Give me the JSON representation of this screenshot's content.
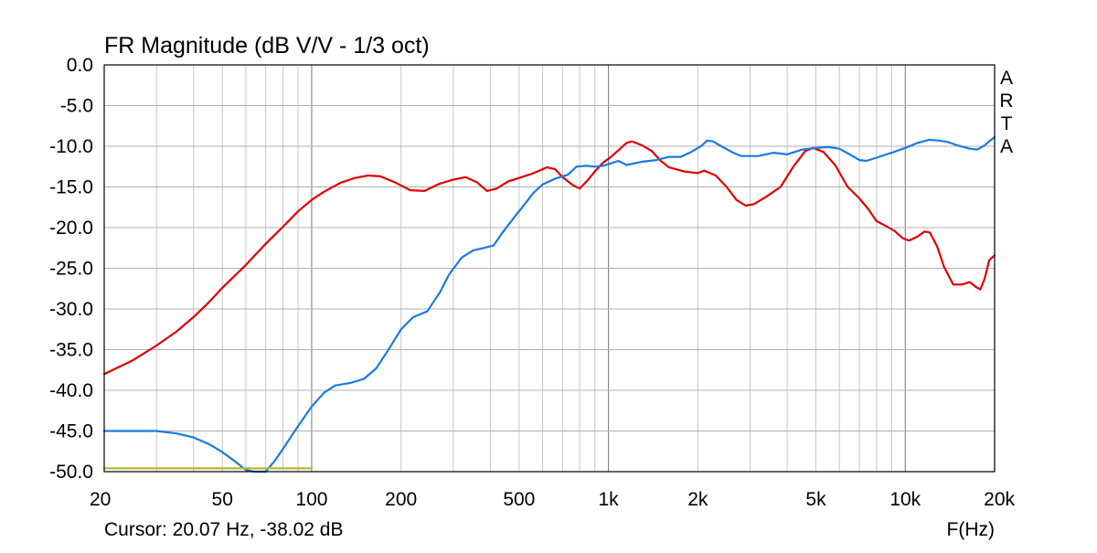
{
  "chart_data": {
    "type": "line",
    "title": "FR Magnitude (dB V/V - 1/3 oct)",
    "xlabel": "F(Hz)",
    "ylabel": "",
    "x_scale": "log",
    "xlim": [
      20,
      20000
    ],
    "ylim": [
      -50,
      0
    ],
    "grid": true,
    "x_ticks": [
      {
        "value": 20,
        "label": "20"
      },
      {
        "value": 50,
        "label": "50"
      },
      {
        "value": 100,
        "label": "100"
      },
      {
        "value": 200,
        "label": "200"
      },
      {
        "value": 500,
        "label": "500"
      },
      {
        "value": 1000,
        "label": "1k"
      },
      {
        "value": 2000,
        "label": "2k"
      },
      {
        "value": 5000,
        "label": "5k"
      },
      {
        "value": 10000,
        "label": "10k"
      },
      {
        "value": 20000,
        "label": "20k"
      }
    ],
    "y_ticks": [
      {
        "value": 0,
        "label": "0.0"
      },
      {
        "value": -5,
        "label": "-5.0"
      },
      {
        "value": -10,
        "label": "-10.0"
      },
      {
        "value": -15,
        "label": "-15.0"
      },
      {
        "value": -20,
        "label": "-20.0"
      },
      {
        "value": -25,
        "label": "-25.0"
      },
      {
        "value": -30,
        "label": "-30.0"
      },
      {
        "value": -35,
        "label": "-35.0"
      },
      {
        "value": -40,
        "label": "-40.0"
      },
      {
        "value": -45,
        "label": "-45.0"
      },
      {
        "value": -50,
        "label": "-50.0"
      }
    ],
    "series": [
      {
        "color": "#e00000",
        "points": [
          [
            20,
            -38
          ],
          [
            25,
            -36.3
          ],
          [
            30,
            -34.5
          ],
          [
            35,
            -32.8
          ],
          [
            40,
            -31.0
          ],
          [
            45,
            -29.2
          ],
          [
            50,
            -27.4
          ],
          [
            60,
            -24.6
          ],
          [
            70,
            -22.0
          ],
          [
            80,
            -19.9
          ],
          [
            90,
            -18.0
          ],
          [
            100,
            -16.6
          ],
          [
            110,
            -15.6
          ],
          [
            125,
            -14.5
          ],
          [
            140,
            -13.9
          ],
          [
            155,
            -13.6
          ],
          [
            170,
            -13.7
          ],
          [
            190,
            -14.4
          ],
          [
            215,
            -15.4
          ],
          [
            240,
            -15.5
          ],
          [
            270,
            -14.6
          ],
          [
            300,
            -14.1
          ],
          [
            330,
            -13.8
          ],
          [
            360,
            -14.4
          ],
          [
            390,
            -15.5
          ],
          [
            420,
            -15.2
          ],
          [
            460,
            -14.3
          ],
          [
            500,
            -13.9
          ],
          [
            560,
            -13.3
          ],
          [
            620,
            -12.6
          ],
          [
            660,
            -12.8
          ],
          [
            700,
            -13.8
          ],
          [
            760,
            -14.8
          ],
          [
            800,
            -15.2
          ],
          [
            850,
            -14.2
          ],
          [
            900,
            -13.1
          ],
          [
            960,
            -12.0
          ],
          [
            1020,
            -11.3
          ],
          [
            1080,
            -10.5
          ],
          [
            1150,
            -9.6
          ],
          [
            1200,
            -9.4
          ],
          [
            1300,
            -9.9
          ],
          [
            1400,
            -10.6
          ],
          [
            1500,
            -11.8
          ],
          [
            1600,
            -12.6
          ],
          [
            1800,
            -13.1
          ],
          [
            2000,
            -13.3
          ],
          [
            2100,
            -13.0
          ],
          [
            2300,
            -13.6
          ],
          [
            2500,
            -15.0
          ],
          [
            2700,
            -16.6
          ],
          [
            2900,
            -17.3
          ],
          [
            3100,
            -17.1
          ],
          [
            3400,
            -16.2
          ],
          [
            3800,
            -15.0
          ],
          [
            4200,
            -12.5
          ],
          [
            4600,
            -10.6
          ],
          [
            4900,
            -10.2
          ],
          [
            5300,
            -10.7
          ],
          [
            5800,
            -12.3
          ],
          [
            6400,
            -15.0
          ],
          [
            7000,
            -16.4
          ],
          [
            7500,
            -17.7
          ],
          [
            8000,
            -19.2
          ],
          [
            8600,
            -19.8
          ],
          [
            9200,
            -20.4
          ],
          [
            9800,
            -21.3
          ],
          [
            10300,
            -21.6
          ],
          [
            11000,
            -21.1
          ],
          [
            11600,
            -20.5
          ],
          [
            12100,
            -20.6
          ],
          [
            12800,
            -22.3
          ],
          [
            13500,
            -24.8
          ],
          [
            14500,
            -27.0
          ],
          [
            15500,
            -27.0
          ],
          [
            16500,
            -26.7
          ],
          [
            17300,
            -27.3
          ],
          [
            17900,
            -27.6
          ],
          [
            18500,
            -26.3
          ],
          [
            19200,
            -24.0
          ],
          [
            20000,
            -23.4
          ]
        ]
      },
      {
        "color": "#1a7ae0",
        "points": [
          [
            20,
            -45
          ],
          [
            25,
            -45
          ],
          [
            30,
            -45
          ],
          [
            35,
            -45.3
          ],
          [
            40,
            -45.8
          ],
          [
            45,
            -46.6
          ],
          [
            50,
            -47.6
          ],
          [
            55,
            -48.7
          ],
          [
            60,
            -49.8
          ],
          [
            64,
            -50
          ],
          [
            70,
            -50
          ],
          [
            75,
            -48.7
          ],
          [
            80,
            -47.2
          ],
          [
            90,
            -44.4
          ],
          [
            100,
            -42.0
          ],
          [
            110,
            -40.3
          ],
          [
            120,
            -39.4
          ],
          [
            135,
            -39.1
          ],
          [
            150,
            -38.6
          ],
          [
            165,
            -37.3
          ],
          [
            180,
            -35.2
          ],
          [
            200,
            -32.5
          ],
          [
            220,
            -31.0
          ],
          [
            245,
            -30.3
          ],
          [
            270,
            -28.0
          ],
          [
            290,
            -25.8
          ],
          [
            320,
            -23.7
          ],
          [
            350,
            -22.8
          ],
          [
            380,
            -22.5
          ],
          [
            410,
            -22.2
          ],
          [
            440,
            -20.6
          ],
          [
            480,
            -18.8
          ],
          [
            520,
            -17.2
          ],
          [
            560,
            -15.7
          ],
          [
            600,
            -14.7
          ],
          [
            660,
            -14.0
          ],
          [
            730,
            -13.5
          ],
          [
            780,
            -12.5
          ],
          [
            840,
            -12.4
          ],
          [
            900,
            -12.5
          ],
          [
            960,
            -12.4
          ],
          [
            1020,
            -12.1
          ],
          [
            1080,
            -11.8
          ],
          [
            1150,
            -12.3
          ],
          [
            1300,
            -11.9
          ],
          [
            1450,
            -11.7
          ],
          [
            1600,
            -11.3
          ],
          [
            1750,
            -11.3
          ],
          [
            1900,
            -10.7
          ],
          [
            2050,
            -10.0
          ],
          [
            2150,
            -9.3
          ],
          [
            2250,
            -9.4
          ],
          [
            2400,
            -10.0
          ],
          [
            2600,
            -10.7
          ],
          [
            2800,
            -11.2
          ],
          [
            3200,
            -11.2
          ],
          [
            3600,
            -10.8
          ],
          [
            4000,
            -11.0
          ],
          [
            4500,
            -10.4
          ],
          [
            5000,
            -10.2
          ],
          [
            5500,
            -10.1
          ],
          [
            6000,
            -10.3
          ],
          [
            6500,
            -11.0
          ],
          [
            7000,
            -11.7
          ],
          [
            7400,
            -11.8
          ],
          [
            8000,
            -11.4
          ],
          [
            9000,
            -10.8
          ],
          [
            10000,
            -10.2
          ],
          [
            11000,
            -9.6
          ],
          [
            12000,
            -9.2
          ],
          [
            13000,
            -9.3
          ],
          [
            14000,
            -9.5
          ],
          [
            15000,
            -9.9
          ],
          [
            16500,
            -10.3
          ],
          [
            17500,
            -10.4
          ],
          [
            18500,
            -9.9
          ],
          [
            19300,
            -9.3
          ],
          [
            20000,
            -8.9
          ]
        ]
      },
      {
        "color": "#b8b830",
        "points": [
          [
            20,
            -49.6
          ],
          [
            100,
            -49.6
          ]
        ]
      }
    ]
  },
  "cursor_text": "Cursor: 20.07 Hz, -38.02 dB",
  "brand_letters": [
    "A",
    "R",
    "T",
    "A"
  ]
}
